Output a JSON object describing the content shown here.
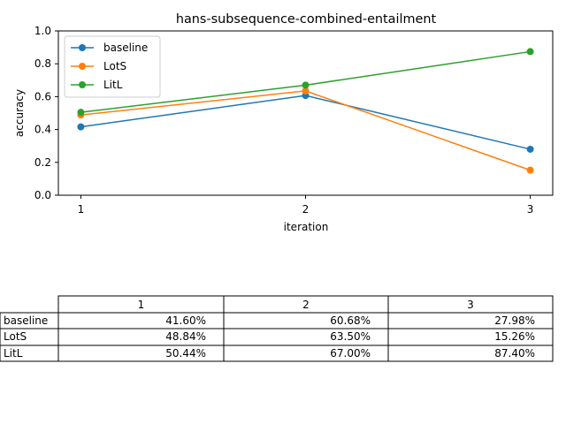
{
  "chart_data": {
    "type": "line",
    "title": "hans-subsequence-combined-entailment",
    "xlabel": "iteration",
    "ylabel": "accuracy",
    "x": [
      1,
      2,
      3
    ],
    "xticks": [
      "1",
      "2",
      "3"
    ],
    "ylim": [
      0.0,
      1.0
    ],
    "yticks": [
      "0.0",
      "0.2",
      "0.4",
      "0.6",
      "0.8",
      "1.0"
    ],
    "grid": false,
    "legend_position": "top-left",
    "series": [
      {
        "name": "baseline",
        "color": "#1f77b4",
        "values": [
          0.416,
          0.6068,
          0.2798
        ]
      },
      {
        "name": "LotS",
        "color": "#ff7f0e",
        "values": [
          0.4884,
          0.635,
          0.1526
        ]
      },
      {
        "name": "LitL",
        "color": "#2ca02c",
        "values": [
          0.5044,
          0.67,
          0.874
        ]
      }
    ]
  },
  "table": {
    "columns": [
      "1",
      "2",
      "3"
    ],
    "rows": [
      {
        "label": "baseline",
        "cells": [
          "41.60%",
          "60.68%",
          "27.98%"
        ]
      },
      {
        "label": "LotS",
        "cells": [
          "48.84%",
          "63.50%",
          "15.26%"
        ]
      },
      {
        "label": "LitL",
        "cells": [
          "50.44%",
          "67.00%",
          "87.40%"
        ]
      }
    ]
  }
}
